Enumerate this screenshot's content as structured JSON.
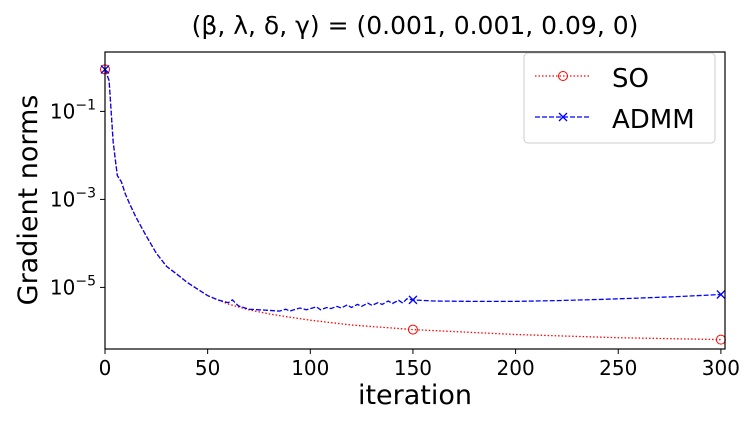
{
  "chart_data": {
    "type": "line",
    "title": "(β, λ, δ, γ) = (0.001, 0.001, 0.09, 0)",
    "xlabel": "iteration",
    "ylabel": "Gradient norms",
    "xlim": [
      0,
      302
    ],
    "ylim_log10": [
      -6.4,
      0.35
    ],
    "yscale": "log",
    "xticks": [
      0,
      50,
      100,
      150,
      200,
      250,
      300
    ],
    "yticks": [
      {
        "base": "10",
        "exp": "−1",
        "value": 0.1
      },
      {
        "base": "10",
        "exp": "−3",
        "value": 0.001
      },
      {
        "base": "10",
        "exp": "−5",
        "value": 1e-05
      }
    ],
    "grid": false,
    "legend_position": "top-right",
    "series": [
      {
        "name": "SO",
        "color": "#ff0000",
        "linestyle": "dotted",
        "marker": "circle",
        "marker_x": [
          0,
          150,
          300
        ],
        "points": [
          [
            0,
            0.9
          ],
          [
            2,
            0.5
          ],
          [
            4,
            0.02
          ],
          [
            6,
            0.0035
          ],
          [
            8,
            0.0025
          ],
          [
            10,
            0.0013
          ],
          [
            12,
            0.0008
          ],
          [
            15,
            0.0004
          ],
          [
            20,
            0.00015
          ],
          [
            25,
            6e-05
          ],
          [
            30,
            3e-05
          ],
          [
            35,
            2e-05
          ],
          [
            40,
            1.3e-05
          ],
          [
            50,
            6.5e-06
          ],
          [
            60,
            4.2e-06
          ],
          [
            70,
            3.1e-06
          ],
          [
            80,
            2.5e-06
          ],
          [
            90,
            2.1e-06
          ],
          [
            100,
            1.8e-06
          ],
          [
            120,
            1.4e-06
          ],
          [
            150,
            1.1e-06
          ],
          [
            200,
            8.5e-07
          ],
          [
            250,
            7.2e-07
          ],
          [
            300,
            6.5e-07
          ]
        ]
      },
      {
        "name": "ADMM",
        "color": "#0000ff",
        "linestyle": "dashed",
        "marker": "x",
        "marker_x": [
          0,
          150,
          300
        ],
        "points": [
          [
            0,
            0.9
          ],
          [
            2,
            0.5
          ],
          [
            4,
            0.02
          ],
          [
            6,
            0.0035
          ],
          [
            8,
            0.0025
          ],
          [
            10,
            0.0013
          ],
          [
            12,
            0.0008
          ],
          [
            15,
            0.0004
          ],
          [
            20,
            0.00015
          ],
          [
            25,
            6e-05
          ],
          [
            30,
            3e-05
          ],
          [
            35,
            2e-05
          ],
          [
            40,
            1.3e-05
          ],
          [
            50,
            6.5e-06
          ],
          [
            55,
            5.2e-06
          ],
          [
            60,
            4.5e-06
          ],
          [
            62,
            5.2e-06
          ],
          [
            65,
            3.8e-06
          ],
          [
            70,
            3.2e-06
          ],
          [
            75,
            3.1e-06
          ],
          [
            80,
            3e-06
          ],
          [
            85,
            2.9e-06
          ],
          [
            88,
            3.2e-06
          ],
          [
            90,
            2.9e-06
          ],
          [
            92,
            3.1e-06
          ],
          [
            95,
            3.4e-06
          ],
          [
            98,
            3.1e-06
          ],
          [
            100,
            3.3e-06
          ],
          [
            103,
            3.6e-06
          ],
          [
            105,
            3.1e-06
          ],
          [
            108,
            3.5e-06
          ],
          [
            110,
            3.3e-06
          ],
          [
            113,
            3.7e-06
          ],
          [
            115,
            3.4e-06
          ],
          [
            118,
            4e-06
          ],
          [
            120,
            3.5e-06
          ],
          [
            123,
            4.1e-06
          ],
          [
            125,
            3.7e-06
          ],
          [
            128,
            4.4e-06
          ],
          [
            130,
            3.9e-06
          ],
          [
            133,
            4.5e-06
          ],
          [
            135,
            4.1e-06
          ],
          [
            138,
            4.9e-06
          ],
          [
            140,
            4.3e-06
          ],
          [
            143,
            5.1e-06
          ],
          [
            145,
            4.4e-06
          ],
          [
            147,
            5.5e-06
          ],
          [
            150,
            5.2e-06
          ],
          [
            160,
            4.9e-06
          ],
          [
            180,
            4.8e-06
          ],
          [
            200,
            4.8e-06
          ],
          [
            220,
            5e-06
          ],
          [
            240,
            5.3e-06
          ],
          [
            260,
            5.7e-06
          ],
          [
            280,
            6.2e-06
          ],
          [
            300,
            6.9e-06
          ]
        ]
      }
    ]
  }
}
